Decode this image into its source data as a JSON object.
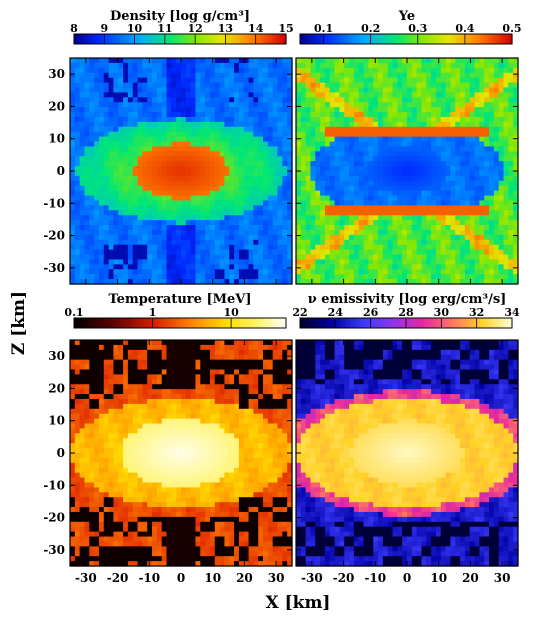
{
  "figure": {
    "xlabel": "X [km]",
    "ylabel": "Z [km]"
  },
  "chart_data": [
    {
      "type": "heatmap",
      "title": "Density [log g/cm³]",
      "colorbar": {
        "ticks": [
          "8",
          "9",
          "10",
          "11",
          "12",
          "13",
          "14",
          "15"
        ],
        "range": [
          8,
          15
        ],
        "scale": "jet"
      },
      "xlim": [
        -35,
        35
      ],
      "ylim": [
        -35,
        35
      ],
      "xticks": [
        -30,
        -20,
        -10,
        0,
        10,
        20,
        30
      ],
      "yticks": [
        -30,
        -20,
        -10,
        0,
        10,
        20,
        30
      ],
      "core_peak": 14.5,
      "core_semi_axes_km": [
        14,
        7
      ]
    },
    {
      "type": "heatmap",
      "title": "Ye",
      "colorbar": {
        "ticks": [
          "0.1",
          "0.2",
          "0.3",
          "0.4",
          "0.5"
        ],
        "range": [
          0.05,
          0.5
        ],
        "scale": "jet"
      },
      "xlim": [
        -35,
        35
      ],
      "ylim": [
        -35,
        35
      ],
      "xticks": [
        -30,
        -20,
        -10,
        0,
        10,
        20,
        30
      ],
      "yticks": [
        -30,
        -20,
        -10,
        0,
        10,
        20,
        30
      ],
      "core_value": 0.12
    },
    {
      "type": "heatmap",
      "title": "Temperature [MeV]",
      "colorbar": {
        "ticks": [
          "0.1",
          "1",
          "10"
        ],
        "range": [
          0.1,
          50
        ],
        "log": true,
        "scale": "hot"
      },
      "xlim": [
        -35,
        35
      ],
      "ylim": [
        -35,
        35
      ],
      "xticks": [
        -30,
        -20,
        -10,
        0,
        10,
        20,
        30
      ],
      "yticks": [
        -30,
        -20,
        -10,
        0,
        10,
        20,
        30
      ]
    },
    {
      "type": "heatmap",
      "title": "ν emissivity [log erg/cm³/s]",
      "colorbar": {
        "ticks": [
          "22",
          "24",
          "26",
          "28",
          "30",
          "32",
          "34"
        ],
        "range": [
          22,
          34
        ],
        "scale": "gnuplot"
      },
      "xlim": [
        -35,
        35
      ],
      "ylim": [
        -35,
        35
      ],
      "xticks": [
        -30,
        -20,
        -10,
        0,
        10,
        20,
        30
      ],
      "yticks": [
        -30,
        -20,
        -10,
        0,
        10,
        20,
        30
      ]
    }
  ]
}
